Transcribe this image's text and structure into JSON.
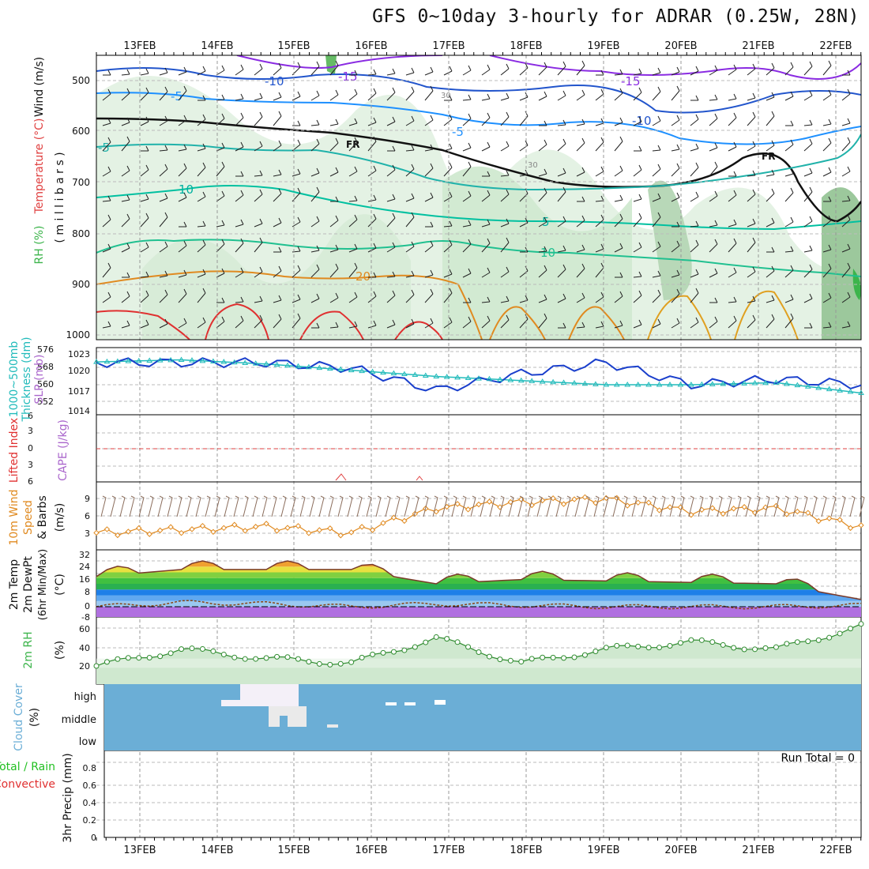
{
  "title": "GFS 0~10day 3-hourly for ADRAR (0.25W, 28N)",
  "dates": [
    "13FEB",
    "14FEB",
    "15FEB",
    "16FEB",
    "17FEB",
    "18FEB",
    "19FEB",
    "20FEB",
    "21FEB",
    "22FEB"
  ],
  "colors": {
    "rh_green": "#3cb44b",
    "temp_red": "#e04040",
    "dewpt": "#8b4513",
    "slp": "#1a3fcc",
    "thickness": "#22bbbb",
    "cape": "#aa66cc",
    "lifted": "#e03030",
    "wind": "#e08a20",
    "cloud": "#6baed6",
    "precip_green": "#22c022"
  },
  "panels": {
    "upper": {
      "ylabel_1": "Wind (m/s)",
      "ylabel_2": "Temperature (°C)",
      "ylabel_3": "RH (%)",
      "ylabel_unit": "( m i l l i b a r s )",
      "ticks": [
        "500",
        "600",
        "700",
        "800",
        "900",
        "1000"
      ],
      "contour_labels": {
        "t1": "-15",
        "t2": "-10",
        "t3": "-5",
        "t4": "-5",
        "t5": "10",
        "t6": "20",
        "t7": "5",
        "t8": "10",
        "t9": "-15",
        "t10": "-10",
        "t11": "FR",
        "t12": "FR",
        "t13": "-5",
        "t14": "30",
        "t15": "30"
      }
    },
    "thick": {
      "ylabel_1": "1000~500mb",
      "ylabel_2": "Thickness (dm)",
      "ylabel_3": "SLP (mb)",
      "left_ticks": [
        "576",
        "568",
        "560",
        "552"
      ],
      "right_ticks": [
        "1023",
        "1020",
        "1017",
        "1014"
      ]
    },
    "cape": {
      "ylabel_1": "Lifted Index",
      "ylabel_2": "CAPE (J/kg)",
      "ticks": [
        "6",
        "3",
        "0",
        "3",
        "6"
      ]
    },
    "wind10": {
      "ylabel_1": "10m Wind",
      "ylabel_2": "Speed",
      "ylabel_3": "& Barbs",
      "unit": "(m/s)",
      "ticks": [
        "9",
        "6",
        "3"
      ]
    },
    "temp2m": {
      "ylabel_1": "2m Temp",
      "ylabel_2": "2m DewPt",
      "ylabel_3": "(6hr Min/Max)",
      "unit": "(°C)",
      "ticks": [
        "32",
        "24",
        "16",
        "8",
        "0",
        "-8"
      ]
    },
    "rh2m": {
      "ylabel_1": "2m RH",
      "unit": "(%)",
      "ticks": [
        "60",
        "40",
        "20"
      ]
    },
    "cloud": {
      "ylabel_1": "Cloud Cover",
      "unit": "(%)",
      "levels": [
        "high",
        "middle",
        "low"
      ]
    },
    "precip": {
      "ylabel_1": "Total / Rain",
      "ylabel_2": "Convective",
      "ylabel_3": "3hr Precip (mm)",
      "ticks": [
        "0.8",
        "0.6",
        "0.4",
        "0.2",
        "0"
      ],
      "run_total": "Run Total = 0"
    }
  },
  "chart_data": [
    {
      "type": "line",
      "title": "1000~500mb Thickness (dm) & SLP (mb)",
      "x": [
        "13FEB",
        "14FEB",
        "15FEB",
        "16FEB",
        "17FEB",
        "18FEB",
        "19FEB",
        "20FEB",
        "21FEB",
        "22FEB"
      ],
      "series": [
        {
          "name": "SLP (mb)",
          "values": [
            1021,
            1021,
            1021,
            1020,
            1016,
            1019,
            1021,
            1017,
            1018,
            1017
          ]
        },
        {
          "name": "1000~500mb Thickness (dm)",
          "values": [
            571,
            572,
            570,
            567,
            564,
            562,
            560,
            560,
            561,
            556
          ]
        }
      ]
    },
    {
      "type": "line",
      "title": "10m Wind Speed (m/s)",
      "x": [
        "13FEB",
        "14FEB",
        "15FEB",
        "16FEB",
        "17FEB",
        "18FEB",
        "19FEB",
        "20FEB",
        "21FEB",
        "22FEB"
      ],
      "series": [
        {
          "name": "Speed",
          "values": [
            3.5,
            4.0,
            4.5,
            3.5,
            7.5,
            8.5,
            9.0,
            7.0,
            7.5,
            4.5
          ]
        }
      ]
    },
    {
      "type": "area",
      "title": "2m Temp (°C)",
      "x": [
        "13FEB",
        "14FEB",
        "15FEB",
        "16FEB",
        "17FEB",
        "18FEB",
        "19FEB",
        "20FEB",
        "21FEB",
        "22FEB"
      ],
      "series": [
        {
          "name": "2m Temp",
          "values": [
            24,
            29,
            29,
            29,
            19,
            22,
            21,
            20,
            19,
            8
          ]
        },
        {
          "name": "2m DewPt",
          "values": [
            0,
            3,
            2,
            0,
            2,
            1,
            0,
            0,
            0,
            1
          ]
        }
      ]
    },
    {
      "type": "area",
      "title": "2m RH (%)",
      "x": [
        "13FEB",
        "14FEB",
        "15FEB",
        "16FEB",
        "17FEB",
        "18FEB",
        "19FEB",
        "20FEB",
        "21FEB",
        "22FEB"
      ],
      "series": [
        {
          "name": "2m RH",
          "values": [
            22,
            40,
            30,
            25,
            52,
            25,
            40,
            48,
            40,
            65
          ]
        }
      ]
    },
    {
      "type": "bar",
      "title": "3hr Precip (mm)",
      "x": [
        "13FEB",
        "14FEB",
        "15FEB",
        "16FEB",
        "17FEB",
        "18FEB",
        "19FEB",
        "20FEB",
        "21FEB",
        "22FEB"
      ],
      "ylim": [
        0,
        0.9
      ],
      "series": [
        {
          "name": "Total / Rain",
          "values": [
            0,
            0,
            0,
            0,
            0,
            0,
            0,
            0,
            0,
            0
          ]
        }
      ]
    }
  ]
}
